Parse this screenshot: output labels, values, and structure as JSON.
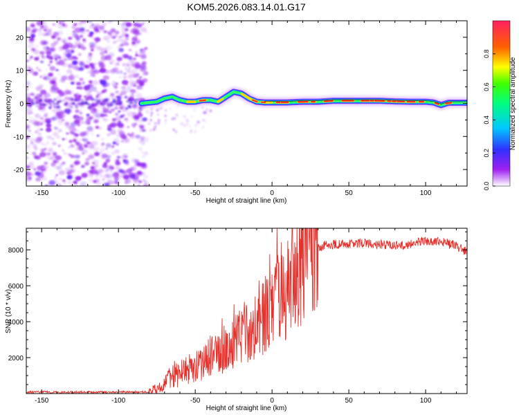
{
  "figure": {
    "title": "KOM5.2026.083.14.01.G17"
  },
  "chart_data": [
    {
      "type": "heatmap",
      "xlabel": "Height of straight line (km)",
      "ylabel": "Frequency (Hz)",
      "xlim": [
        -160,
        127
      ],
      "ylim": [
        -25,
        25
      ],
      "xticks": [
        -150,
        -100,
        -50,
        0,
        50,
        100
      ],
      "yticks": [
        -20,
        -10,
        0,
        10,
        20
      ],
      "colorbar": {
        "label": "Normalized spectral amplitude",
        "range": [
          0.0,
          1.0
        ],
        "ticks": [
          0.0,
          0.2,
          0.4,
          0.6,
          0.8
        ]
      },
      "signal_track": {
        "x": [
          -85,
          -75,
          -70,
          -65,
          -60,
          -55,
          -50,
          -45,
          -40,
          -35,
          -30,
          -25,
          -20,
          -15,
          -10,
          -5,
          0,
          10,
          20,
          30,
          40,
          50,
          60,
          70,
          80,
          90,
          100,
          105,
          110,
          115,
          120,
          127
        ],
        "frequency": [
          0,
          0.5,
          1.5,
          2,
          1,
          0.5,
          0.5,
          1,
          1,
          0.5,
          2,
          3.5,
          3,
          1.5,
          0.5,
          0.3,
          0.3,
          0.3,
          0.5,
          0.5,
          0.8,
          0.8,
          0.8,
          0.8,
          0.6,
          0.5,
          0.5,
          0.3,
          -0.5,
          0.2,
          0.2,
          0.2
        ]
      },
      "noise_region_x": [
        -160,
        -82
      ]
    },
    {
      "type": "line",
      "xlabel": "Height of straight line (km)",
      "ylabel": "SNR (10 * v/v)",
      "xlim": [
        -160,
        127
      ],
      "ylim": [
        0,
        9200
      ],
      "xticks": [
        -150,
        -100,
        -50,
        0,
        50,
        100
      ],
      "yticks": [
        2000,
        4000,
        6000,
        8000
      ],
      "color": "#e8302b",
      "envelope": {
        "x": [
          -160,
          -80,
          -75,
          -70,
          -65,
          -60,
          -55,
          -50,
          -45,
          -40,
          -35,
          -30,
          -25,
          -20,
          -15,
          -10,
          -5,
          0,
          5,
          10,
          15,
          20,
          25,
          30,
          35,
          40,
          50,
          60,
          70,
          80,
          90,
          100,
          110,
          120,
          127
        ],
        "y": [
          80,
          80,
          200,
          500,
          900,
          1100,
          1300,
          1600,
          1700,
          2000,
          2100,
          2600,
          2800,
          3300,
          3500,
          3800,
          4300,
          4700,
          5300,
          5900,
          6600,
          7200,
          7700,
          8100,
          8300,
          8300,
          8350,
          8380,
          8300,
          8250,
          8300,
          8500,
          8450,
          8200,
          7900
        ]
      }
    }
  ]
}
